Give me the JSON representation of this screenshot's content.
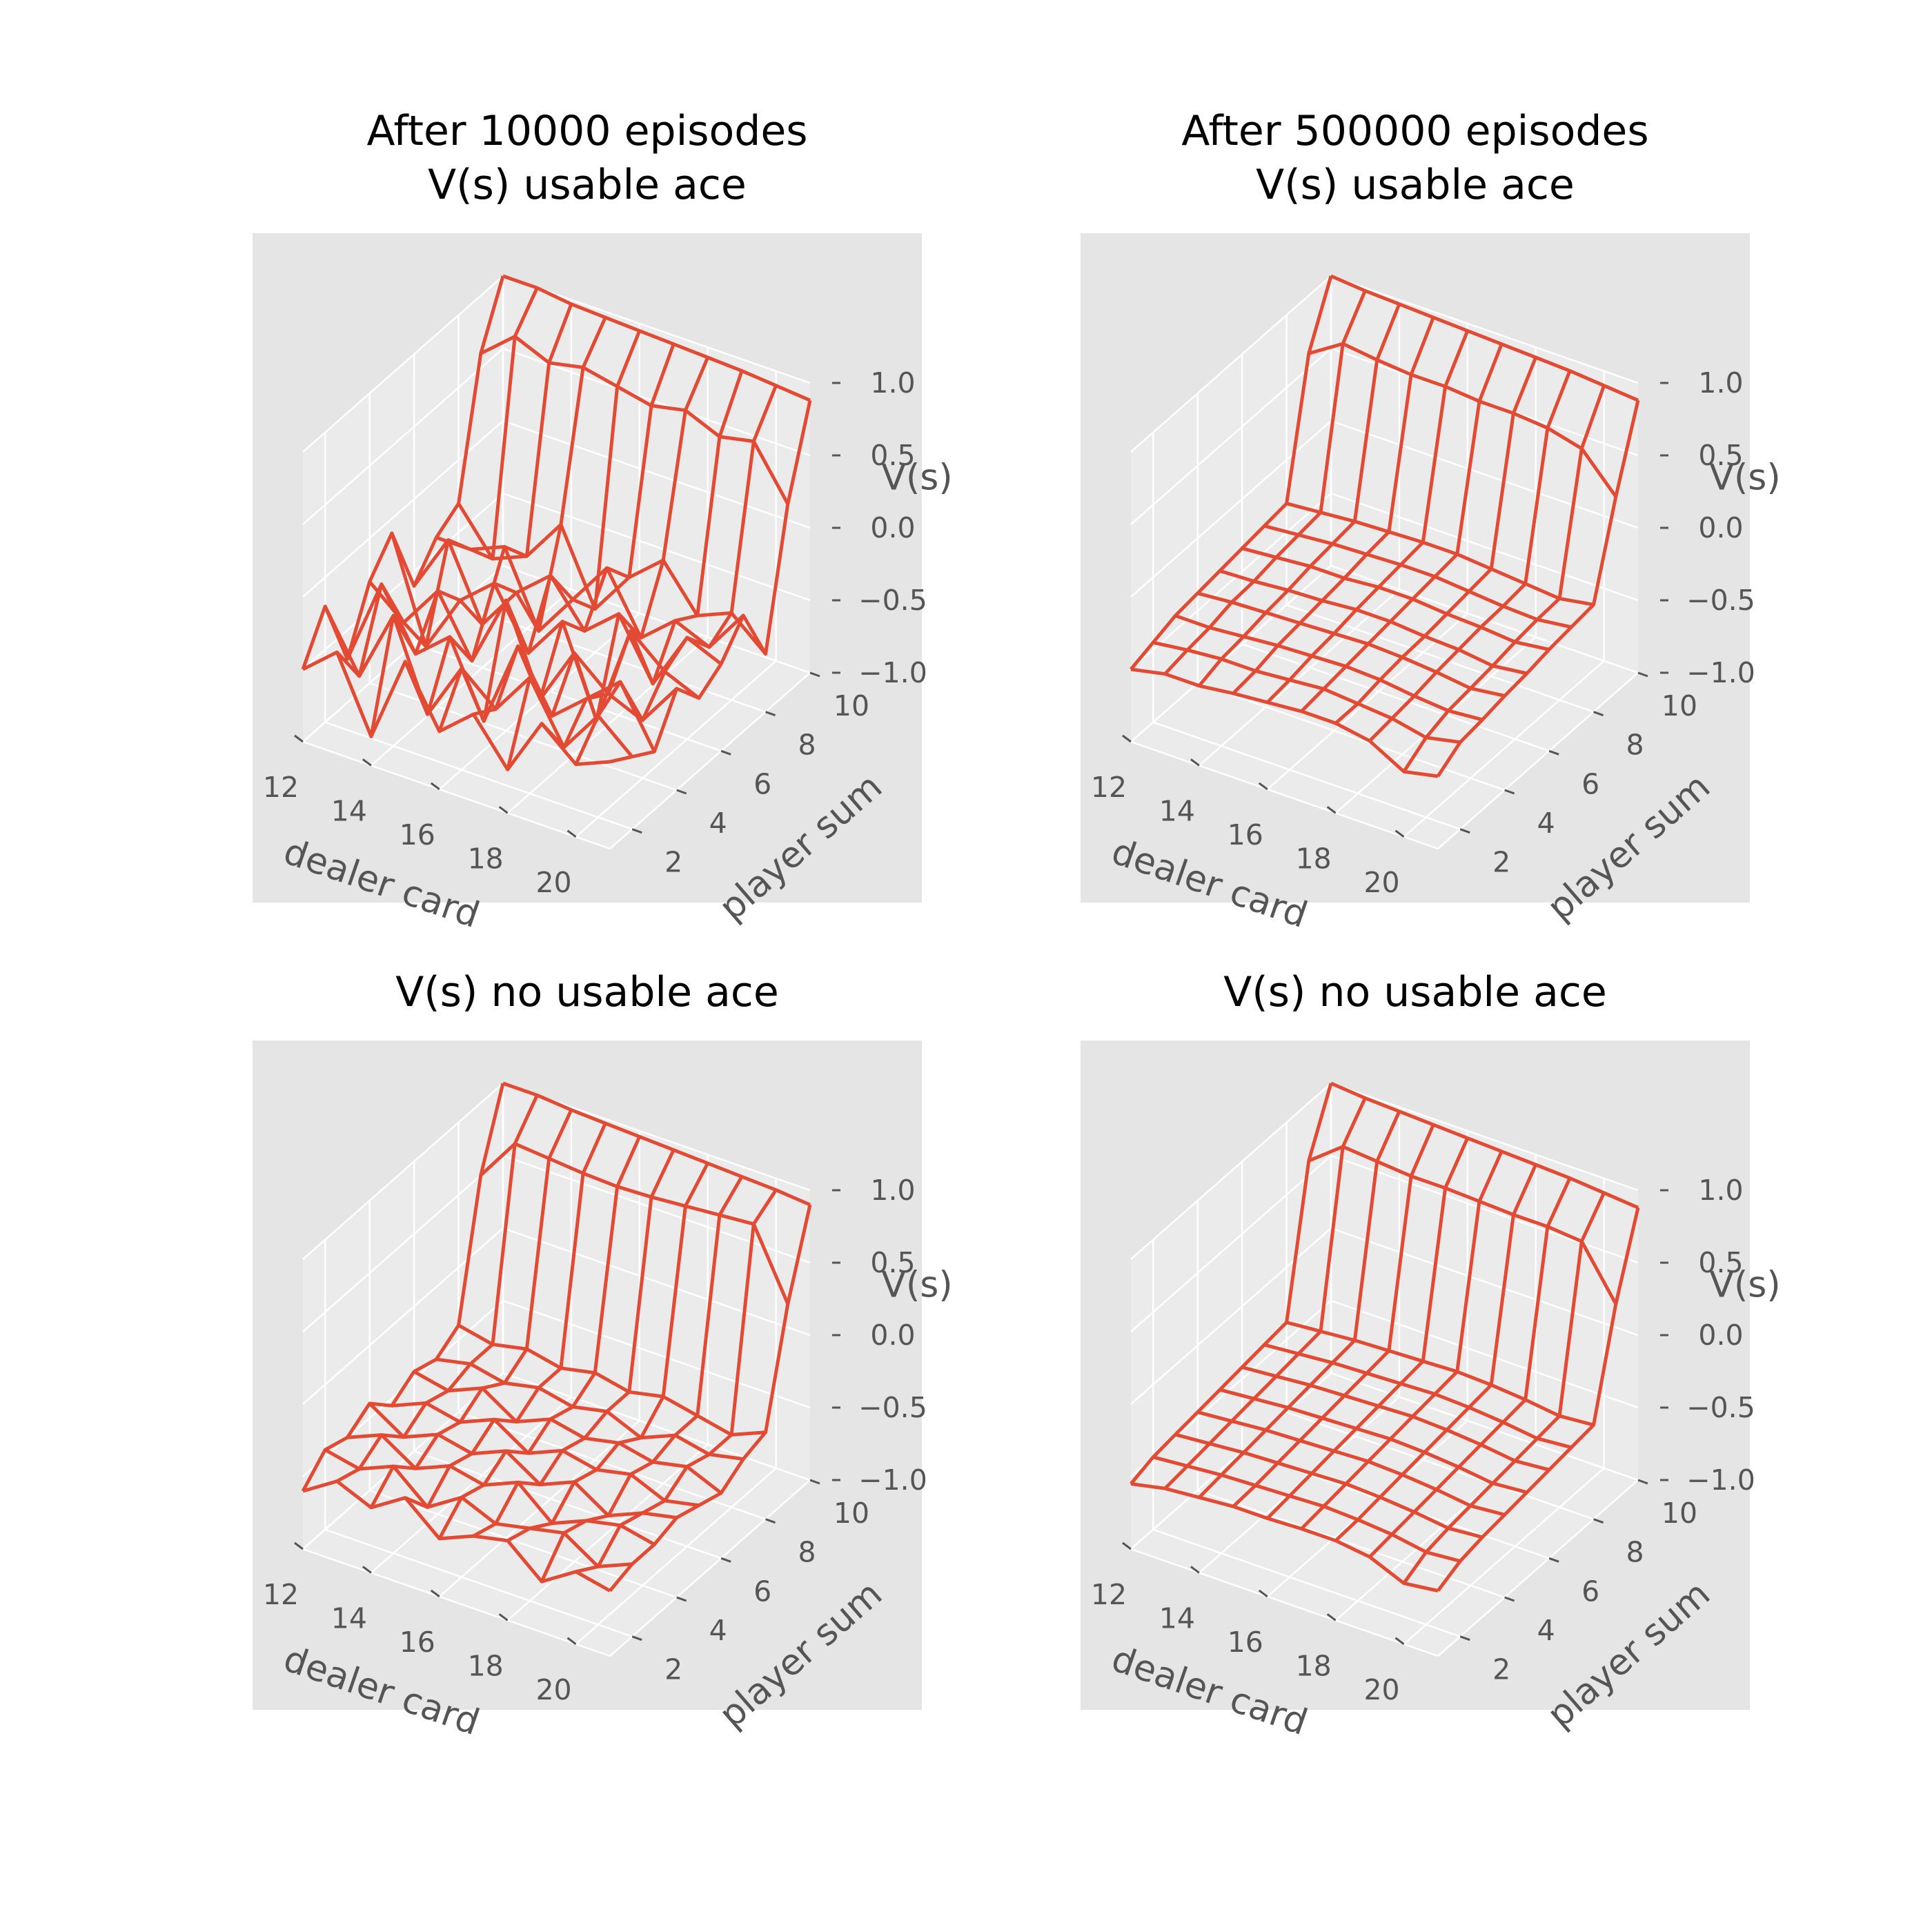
{
  "figure": {
    "background": "#ffffff",
    "axes_background": "#e5e5e5",
    "pane_color": "#ebebeb",
    "grid_color": "#ffffff",
    "wire_color": "#e24a33",
    "tick_color": "#555555"
  },
  "chart_data": [
    {
      "type": "wireframe",
      "title": [
        "After 10000 episodes",
        "V(s) usable ace"
      ],
      "xlabel": "dealer card",
      "ylabel": "player sum",
      "zlabel": "V(s)",
      "xticks": [
        "12",
        "14",
        "16",
        "18",
        "20"
      ],
      "yticks": [
        "2",
        "4",
        "6",
        "8",
        "10"
      ],
      "zticks": [
        "1.0",
        "0.5",
        "0.0",
        "−0.5",
        "−1.0"
      ],
      "x": [
        12,
        13,
        14,
        15,
        16,
        17,
        18,
        19,
        20,
        21
      ],
      "y": [
        1,
        2,
        3,
        4,
        5,
        6,
        7,
        8,
        9,
        10
      ],
      "zlim": [
        -1,
        1
      ],
      "z": [
        [
          -0.5,
          -0.3,
          -0.8,
          -0.2,
          -0.6,
          -0.4,
          -0.7,
          -0.3,
          -0.5,
          -0.4
        ],
        [
          -0.2,
          -0.6,
          -0.1,
          -0.7,
          -0.3,
          -0.5,
          -0.2,
          -0.6,
          -0.3,
          -0.5
        ],
        [
          -0.7,
          -0.1,
          -0.5,
          -0.3,
          -0.8,
          -0.2,
          -0.6,
          -0.4,
          -0.2,
          -0.6
        ],
        [
          -0.3,
          -0.5,
          -0.2,
          -0.6,
          -0.1,
          -0.7,
          -0.3,
          -0.5,
          -0.6,
          -0.3
        ],
        [
          -0.1,
          -0.8,
          -0.4,
          -0.2,
          -0.6,
          -0.3,
          -0.9,
          -0.2,
          -0.4,
          -0.5
        ],
        [
          -0.6,
          -0.2,
          -0.7,
          -0.4,
          -0.2,
          -0.5,
          -0.3,
          -0.7,
          -0.3,
          -0.4
        ],
        [
          -0.4,
          -0.4,
          -0.3,
          -0.8,
          -0.5,
          -0.2,
          -0.6,
          -0.4,
          -0.5,
          -0.2
        ],
        [
          -0.3,
          -0.6,
          -0.5,
          -0.2,
          -0.7,
          -0.4,
          -0.2,
          -0.5,
          -0.4,
          -0.6
        ],
        [
          0.6,
          0.8,
          0.7,
          0.75,
          0.7,
          0.65,
          0.7,
          0.6,
          0.65,
          0.3
        ],
        [
          1.0,
          1.0,
          0.97,
          0.96,
          0.95,
          0.94,
          0.93,
          0.92,
          0.9,
          0.88
        ]
      ]
    },
    {
      "type": "wireframe",
      "title": [
        "After 500000 episodes",
        "V(s) usable ace"
      ],
      "xlabel": "dealer card",
      "ylabel": "player sum",
      "zlabel": "V(s)",
      "xticks": [
        "12",
        "14",
        "16",
        "18",
        "20"
      ],
      "yticks": [
        "2",
        "4",
        "6",
        "8",
        "10"
      ],
      "zticks": [
        "1.0",
        "0.5",
        "0.0",
        "−0.5",
        "−1.0"
      ],
      "x": [
        12,
        13,
        14,
        15,
        16,
        17,
        18,
        19,
        20,
        21
      ],
      "y": [
        1,
        2,
        3,
        4,
        5,
        6,
        7,
        8,
        9,
        10
      ],
      "zlim": [
        -1,
        1
      ],
      "z": [
        [
          -0.5,
          -0.45,
          -0.45,
          -0.42,
          -0.4,
          -0.38,
          -0.38,
          -0.42,
          -0.55,
          -0.5
        ],
        [
          -0.45,
          -0.42,
          -0.4,
          -0.4,
          -0.38,
          -0.36,
          -0.38,
          -0.4,
          -0.45,
          -0.4
        ],
        [
          -0.4,
          -0.4,
          -0.38,
          -0.36,
          -0.35,
          -0.34,
          -0.35,
          -0.38,
          -0.4,
          -0.38
        ],
        [
          -0.38,
          -0.36,
          -0.35,
          -0.34,
          -0.33,
          -0.32,
          -0.33,
          -0.35,
          -0.38,
          -0.35
        ],
        [
          -0.36,
          -0.35,
          -0.33,
          -0.32,
          -0.3,
          -0.3,
          -0.32,
          -0.33,
          -0.36,
          -0.33
        ],
        [
          -0.34,
          -0.32,
          -0.3,
          -0.3,
          -0.28,
          -0.28,
          -0.3,
          -0.31,
          -0.33,
          -0.3
        ],
        [
          -0.32,
          -0.3,
          -0.28,
          -0.27,
          -0.26,
          -0.26,
          -0.28,
          -0.3,
          -0.31,
          -0.28
        ],
        [
          -0.3,
          -0.28,
          -0.26,
          -0.25,
          -0.24,
          -0.24,
          -0.26,
          -0.28,
          -0.3,
          -0.26
        ],
        [
          0.6,
          0.75,
          0.72,
          0.7,
          0.7,
          0.68,
          0.68,
          0.66,
          0.6,
          0.35
        ],
        [
          1.0,
          0.98,
          0.97,
          0.96,
          0.95,
          0.94,
          0.93,
          0.92,
          0.9,
          0.88
        ]
      ]
    },
    {
      "type": "wireframe",
      "title": [
        "V(s) no usable ace"
      ],
      "xlabel": "dealer card",
      "ylabel": "player sum",
      "zlabel": "V(s)",
      "xticks": [
        "12",
        "14",
        "16",
        "18",
        "20"
      ],
      "yticks": [
        "2",
        "4",
        "6",
        "8",
        "10"
      ],
      "zticks": [
        "1.0",
        "0.5",
        "0.0",
        "−0.5",
        "−1.0"
      ],
      "x": [
        12,
        13,
        14,
        15,
        16,
        17,
        18,
        19,
        20,
        21
      ],
      "y": [
        1,
        2,
        3,
        4,
        5,
        6,
        7,
        8,
        9,
        10
      ],
      "zlim": [
        -1,
        1
      ],
      "z": [
        [
          -0.6,
          -0.45,
          -0.55,
          -0.4,
          -0.6,
          -0.5,
          -0.45,
          -0.65,
          -0.5,
          -0.55
        ],
        [
          -0.45,
          -0.5,
          -0.4,
          -0.6,
          -0.45,
          -0.55,
          -0.5,
          -0.45,
          -0.6,
          -0.5
        ],
        [
          -0.5,
          -0.4,
          -0.55,
          -0.45,
          -0.5,
          -0.4,
          -0.6,
          -0.5,
          -0.45,
          -0.5
        ],
        [
          -0.4,
          -0.55,
          -0.45,
          -0.5,
          -0.4,
          -0.55,
          -0.45,
          -0.6,
          -0.5,
          -0.45
        ],
        [
          -0.55,
          -0.45,
          -0.5,
          -0.4,
          -0.55,
          -0.45,
          -0.5,
          -0.45,
          -0.55,
          -0.5
        ],
        [
          -0.45,
          -0.5,
          -0.4,
          -0.55,
          -0.45,
          -0.5,
          -0.45,
          -0.5,
          -0.45,
          -0.55
        ],
        [
          -0.5,
          -0.45,
          -0.5,
          -0.45,
          -0.5,
          -0.45,
          -0.55,
          -0.45,
          -0.5,
          -0.45
        ],
        [
          -0.4,
          -0.45,
          -0.4,
          -0.45,
          -0.4,
          -0.45,
          -0.4,
          -0.45,
          -0.5,
          -0.4
        ],
        [
          0.5,
          0.8,
          0.78,
          0.76,
          0.75,
          0.76,
          0.78,
          0.8,
          0.82,
          0.35
        ],
        [
          1.0,
          1.0,
          0.98,
          0.97,
          0.96,
          0.95,
          0.94,
          0.93,
          0.92,
          0.9
        ]
      ]
    },
    {
      "type": "wireframe",
      "title": [
        "V(s) no usable ace"
      ],
      "xlabel": "dealer card",
      "ylabel": "player sum",
      "zlabel": "V(s)",
      "xticks": [
        "12",
        "14",
        "16",
        "18",
        "20"
      ],
      "yticks": [
        "2",
        "4",
        "6",
        "8",
        "10"
      ],
      "zticks": [
        "1.0",
        "0.5",
        "0.0",
        "−0.5",
        "−1.0"
      ],
      "x": [
        12,
        13,
        14,
        15,
        16,
        17,
        18,
        19,
        20,
        21
      ],
      "y": [
        1,
        2,
        3,
        4,
        5,
        6,
        7,
        8,
        9,
        10
      ],
      "zlim": [
        -1,
        1
      ],
      "z": [
        [
          -0.55,
          -0.5,
          -0.48,
          -0.46,
          -0.46,
          -0.45,
          -0.45,
          -0.48,
          -0.58,
          -0.55
        ],
        [
          -0.5,
          -0.48,
          -0.46,
          -0.45,
          -0.44,
          -0.43,
          -0.44,
          -0.46,
          -0.5,
          -0.48
        ],
        [
          -0.48,
          -0.46,
          -0.44,
          -0.43,
          -0.42,
          -0.41,
          -0.42,
          -0.44,
          -0.47,
          -0.45
        ],
        [
          -0.46,
          -0.44,
          -0.42,
          -0.41,
          -0.4,
          -0.39,
          -0.4,
          -0.42,
          -0.45,
          -0.43
        ],
        [
          -0.44,
          -0.42,
          -0.4,
          -0.39,
          -0.38,
          -0.37,
          -0.38,
          -0.4,
          -0.43,
          -0.41
        ],
        [
          -0.42,
          -0.4,
          -0.38,
          -0.37,
          -0.36,
          -0.35,
          -0.36,
          -0.38,
          -0.41,
          -0.39
        ],
        [
          -0.4,
          -0.38,
          -0.36,
          -0.35,
          -0.34,
          -0.33,
          -0.34,
          -0.36,
          -0.39,
          -0.37
        ],
        [
          -0.38,
          -0.36,
          -0.34,
          -0.33,
          -0.32,
          -0.31,
          -0.32,
          -0.34,
          -0.37,
          -0.35
        ],
        [
          0.6,
          0.78,
          0.76,
          0.74,
          0.74,
          0.73,
          0.72,
          0.72,
          0.7,
          0.35
        ],
        [
          1.0,
          0.98,
          0.97,
          0.96,
          0.95,
          0.94,
          0.93,
          0.92,
          0.9,
          0.88
        ]
      ]
    }
  ]
}
